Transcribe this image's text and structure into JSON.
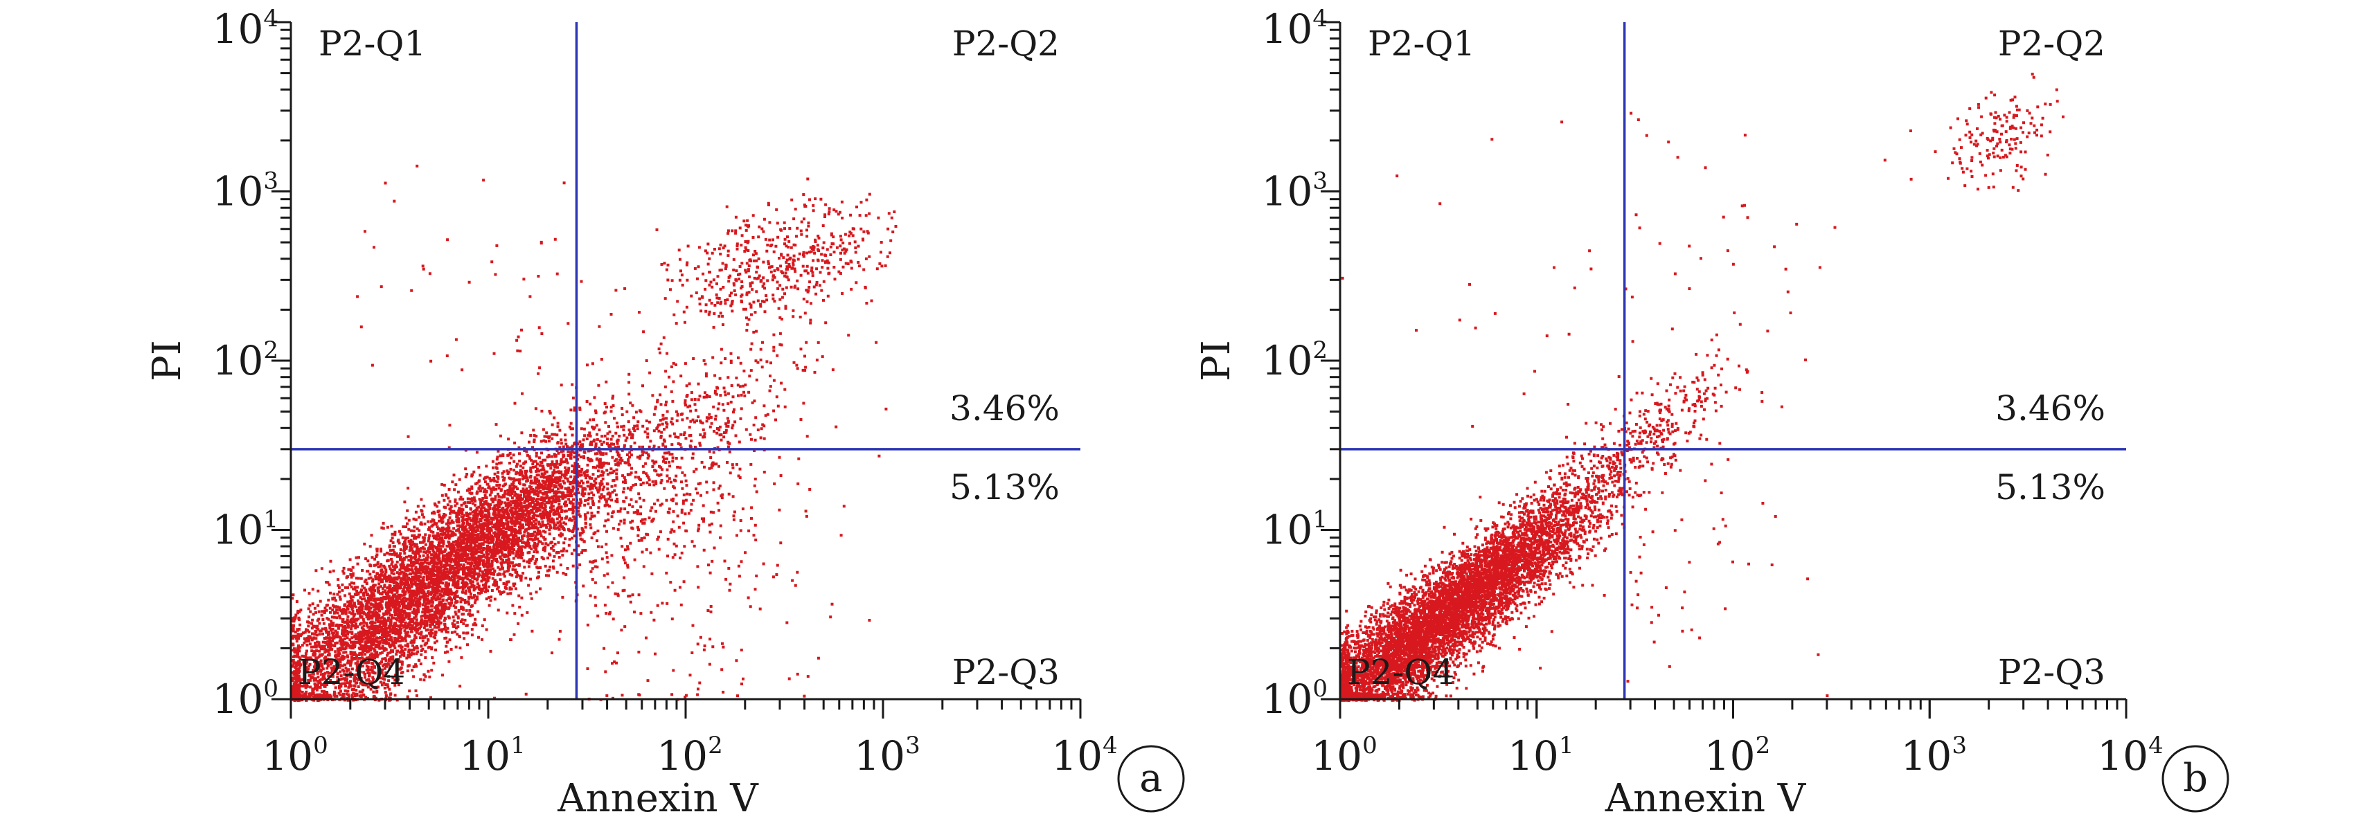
{
  "colors": {
    "points": "#d7191f",
    "gate": "#2b35b5",
    "axis": "#1a1a1a",
    "background": "#ffffff"
  },
  "chart_data": [
    {
      "type": "scatter",
      "panel_label": "a",
      "title": "",
      "xlabel": "Annexin V",
      "ylabel": "PI",
      "xscale": "log",
      "yscale": "log",
      "xlim": [
        1,
        10000
      ],
      "ylim": [
        1,
        10000
      ],
      "x_ticks": [
        {
          "base": "10",
          "exp": "0"
        },
        {
          "base": "10",
          "exp": "1"
        },
        {
          "base": "10",
          "exp": "2"
        },
        {
          "base": "10",
          "exp": "3"
        },
        {
          "base": "10",
          "exp": "4"
        }
      ],
      "y_ticks": [
        {
          "base": "10",
          "exp": "0"
        },
        {
          "base": "10",
          "exp": "1"
        },
        {
          "base": "10",
          "exp": "2"
        },
        {
          "base": "10",
          "exp": "3"
        },
        {
          "base": "10",
          "exp": "4"
        }
      ],
      "grid": false,
      "gate": {
        "x": 28,
        "y": 30
      },
      "quadrants": {
        "top_left": "P2-Q1",
        "top_right": "P2-Q2",
        "bottom_left": "P2-Q4",
        "bottom_right": "P2-Q3"
      },
      "annotations": {
        "upper_right_percent": "3.46%",
        "lower_right_percent": "5.13%"
      },
      "populations": [
        {
          "count": 5200,
          "mean_log": [
            0.9,
            0.88
          ],
          "sd_log": [
            0.4,
            0.36
          ],
          "corr": 0.85
        },
        {
          "count": 1400,
          "mean_log": [
            0.35,
            0.33
          ],
          "sd_log": [
            0.26,
            0.24
          ],
          "corr": 0.55
        },
        {
          "count": 550,
          "mean_log": [
            1.95,
            1.4
          ],
          "sd_log": [
            0.32,
            0.4
          ],
          "corr": 0.7
        },
        {
          "count": 500,
          "mean_log": [
            2.45,
            2.6
          ],
          "sd_log": [
            0.28,
            0.18
          ],
          "corr": 0.45
        },
        {
          "count": 260,
          "mean_log": [
            2.0,
            0.8
          ],
          "sd_log": [
            0.38,
            0.5
          ],
          "corr": 0.2
        },
        {
          "count": 80,
          "mean_log": [
            1.2,
            2.1
          ],
          "sd_log": [
            0.5,
            0.55
          ],
          "corr": 0.1
        }
      ],
      "x_clip": [
        0,
        3.1
      ],
      "y_clip": [
        0,
        3.22
      ]
    },
    {
      "type": "scatter",
      "panel_label": "b",
      "title": "",
      "xlabel": "Annexin V",
      "ylabel": "PI",
      "xscale": "log",
      "yscale": "log",
      "xlim": [
        1,
        10000
      ],
      "ylim": [
        1,
        10000
      ],
      "x_ticks": [
        {
          "base": "10",
          "exp": "0"
        },
        {
          "base": "10",
          "exp": "1"
        },
        {
          "base": "10",
          "exp": "2"
        },
        {
          "base": "10",
          "exp": "3"
        },
        {
          "base": "10",
          "exp": "4"
        }
      ],
      "y_ticks": [
        {
          "base": "10",
          "exp": "0"
        },
        {
          "base": "10",
          "exp": "1"
        },
        {
          "base": "10",
          "exp": "2"
        },
        {
          "base": "10",
          "exp": "3"
        },
        {
          "base": "10",
          "exp": "4"
        }
      ],
      "grid": false,
      "gate": {
        "x": 28,
        "y": 30
      },
      "quadrants": {
        "top_left": "P2-Q1",
        "top_right": "P2-Q2",
        "bottom_left": "P2-Q4",
        "bottom_right": "P2-Q3"
      },
      "annotations": {
        "upper_right_percent": "3.46%",
        "lower_right_percent": "5.13%"
      },
      "populations": [
        {
          "count": 5000,
          "mean_log": [
            0.65,
            0.62
          ],
          "sd_log": [
            0.32,
            0.3
          ],
          "corr": 0.88
        },
        {
          "count": 1500,
          "mean_log": [
            0.25,
            0.22
          ],
          "sd_log": [
            0.2,
            0.18
          ],
          "corr": 0.55
        },
        {
          "count": 380,
          "mean_log": [
            1.5,
            1.5
          ],
          "sd_log": [
            0.25,
            0.25
          ],
          "corr": 0.85
        },
        {
          "count": 160,
          "mean_log": [
            3.35,
            3.3
          ],
          "sd_log": [
            0.15,
            0.15
          ],
          "corr": 0.4
        },
        {
          "count": 70,
          "mean_log": [
            1.7,
            0.9
          ],
          "sd_log": [
            0.4,
            0.5
          ],
          "corr": 0.1
        },
        {
          "count": 60,
          "mean_log": [
            1.6,
            2.5
          ],
          "sd_log": [
            0.6,
            0.5
          ],
          "corr": 0.2
        }
      ],
      "x_clip": [
        0,
        3.7
      ],
      "y_clip": [
        0,
        3.72
      ]
    }
  ]
}
